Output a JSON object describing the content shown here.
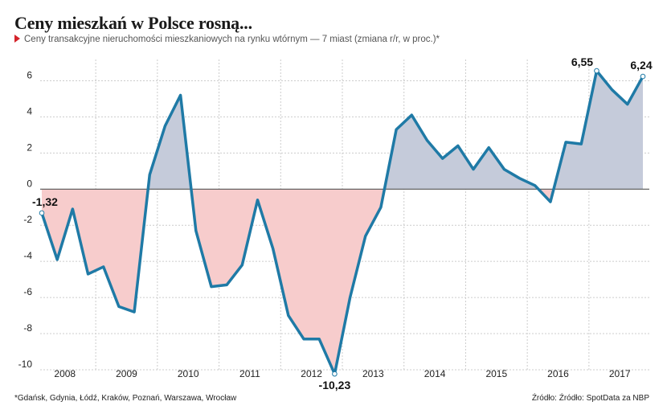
{
  "header": {
    "title": "Ceny mieszkań w Polsce rosną...",
    "subtitle": "Ceny transakcyjne nieruchomości mieszkaniowych na rynku wtórnym — 7 miast (zmiana r/r, w proc.)*"
  },
  "footer": {
    "note": "*Gdańsk, Gdynia, Łódź, Kraków, Poznań, Warszawa, Wrocław",
    "source": "Źródło: Źródło: SpotData za NBP"
  },
  "colors": {
    "line": "#1f7aa6",
    "positive_fill": "#c5cbda",
    "negative_fill": "#f7cccc",
    "grid": "#cccccc",
    "zero_line": "#555555"
  },
  "chart_data": {
    "type": "area",
    "title": "Ceny mieszkań w Polsce rosną...",
    "subtitle": "Ceny transakcyjne nieruchomości mieszkaniowych na rynku wtórnym — 7 miast (zmiana r/r, w proc.)*",
    "xlabel": "",
    "ylabel": "",
    "ylim": [
      -10,
      7
    ],
    "yticks": [
      6,
      4,
      2,
      0,
      -2,
      -4,
      -6,
      -8,
      -10
    ],
    "year_labels": [
      "2008",
      "2009",
      "2010",
      "2011",
      "2012",
      "2013",
      "2014",
      "2015",
      "2016",
      "2017"
    ],
    "grid": true,
    "series": [
      {
        "values": [
          -1.32,
          -3.9,
          -1.1,
          -4.7,
          -4.3,
          -6.5,
          -6.8,
          0.8,
          3.5,
          5.2,
          -2.3,
          -5.4,
          -5.3,
          -4.2,
          -0.6,
          -3.3,
          -7.0,
          -8.3,
          -8.3,
          -10.23,
          -6.0,
          -2.6,
          -1.0,
          3.3,
          4.1,
          2.7,
          1.7,
          2.4,
          1.1,
          2.3,
          1.1,
          0.6,
          0.2,
          -0.7,
          2.6,
          2.5,
          6.55,
          5.5,
          4.7,
          6.24
        ]
      }
    ],
    "annotations": [
      {
        "index": 0,
        "label": "-1,32"
      },
      {
        "index": 19,
        "label": "-10,23"
      },
      {
        "index": 36,
        "label": "6,55"
      },
      {
        "index": 39,
        "label": "6,24"
      }
    ]
  }
}
